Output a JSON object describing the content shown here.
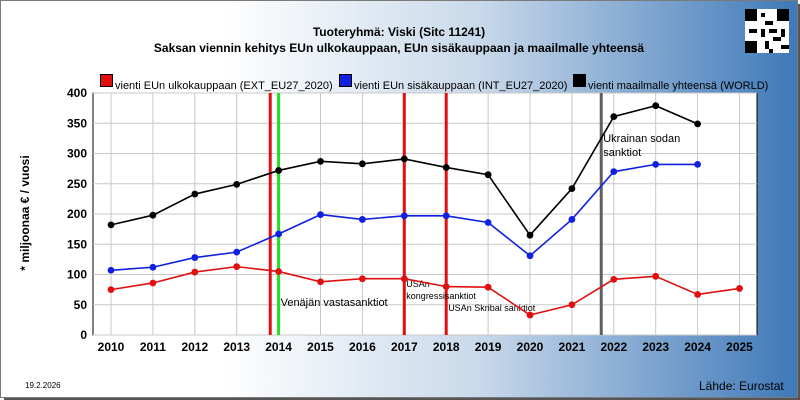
{
  "header": {
    "title": "Tuoteryhmä: Viski (Sitc 11241)",
    "subtitle": "Saksan viennin kehitys EUn ulkokauppaan, EUn sisäkauppaan ja maailmalle yhteensä"
  },
  "footer": {
    "date": "19.2.2026",
    "source": "Lähde: Eurostat"
  },
  "chart_data": {
    "type": "line",
    "title": "Tuoteryhmä: Viski (Sitc 11241)",
    "subtitle": "Saksan viennin kehitys EUn ulkokauppaan, EUn sisäkauppaan ja maailmalle yhteensä",
    "ylabel": "* miljoonaa € / vuosi",
    "xlabel": "",
    "ylim": [
      0,
      400
    ],
    "yticks": [
      "0",
      "50",
      "100",
      "150",
      "200",
      "250",
      "300",
      "350",
      "400"
    ],
    "categories": [
      "2010",
      "2011",
      "2012",
      "2013",
      "2014",
      "2015",
      "2016",
      "2017",
      "2018",
      "2019",
      "2020",
      "2021",
      "2022",
      "2023",
      "2024",
      "2025"
    ],
    "grid": true,
    "legend_position": "top",
    "series": [
      {
        "name": "vienti EUn ulkokauppaan (EXT_EU27_2020)",
        "color": "#e01010",
        "values": [
          75,
          86,
          104,
          113,
          105,
          88,
          93,
          93,
          80,
          79,
          33,
          50,
          92,
          97,
          67,
          77
        ]
      },
      {
        "name": "vienti EUn sisäkauppaan (INT_EU27_2020)",
        "color": "#1020e0",
        "values": [
          107,
          112,
          128,
          137,
          167,
          199,
          191,
          197,
          197,
          186,
          131,
          191,
          270,
          282,
          282,
          null
        ]
      },
      {
        "name": "vienti maailmalle yhteensä (WORLD)",
        "color": "#000000",
        "values": [
          182,
          198,
          233,
          249,
          272,
          287,
          283,
          291,
          277,
          265,
          165,
          242,
          361,
          379,
          349,
          null
        ]
      }
    ],
    "events": [
      {
        "label": "Venäjän vastasanktiot",
        "color": "#e01010",
        "position": 13.8
      },
      {
        "label": "",
        "color": "#20e020",
        "position": 14.0
      },
      {
        "label": "USAn kongressisanktiot",
        "color": "#e01010",
        "position": 17.0
      },
      {
        "label": "USAn Skribal sanktiot",
        "color": "#e01010",
        "position": 18.0
      },
      {
        "label": "Ukrainan sodan sanktiot",
        "color": "#606060",
        "position": 21.7
      }
    ]
  }
}
